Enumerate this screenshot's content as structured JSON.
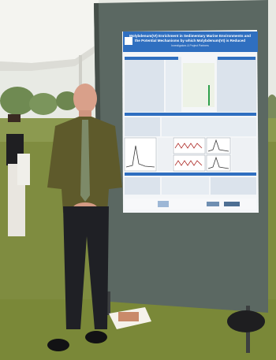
{
  "poster": {
    "title": "Molybdenum(VI) Enrichment in Sedimentary Marine Environments and the Potential Mechanisms by which Molybdenum(VI) is Reduced",
    "authors": "Investigators & Project Partners",
    "logo_number": "79"
  },
  "colors": {
    "sky": "#e9ebe6",
    "tent": "#f4f4f0",
    "grass": "#7d8a3e",
    "board": "#5e6b64",
    "poster_bg": "#f3f5f7",
    "poster_header": "#2f6fc0",
    "shirt": "#5f5a2a",
    "tie": "#7c8a66",
    "pants": "#1e1f24"
  }
}
